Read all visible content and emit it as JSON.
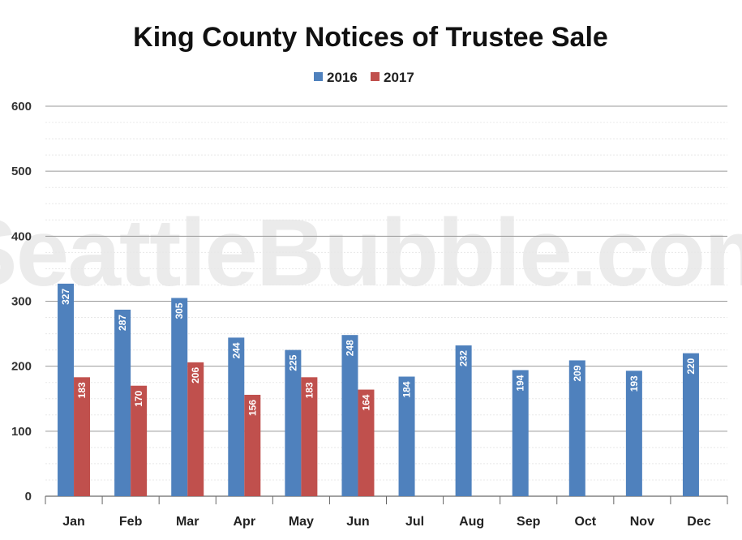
{
  "chart_data": {
    "type": "bar",
    "title": "King County Notices of Trustee Sale",
    "watermark": "SeattleBubble.com",
    "categories": [
      "Jan",
      "Feb",
      "Mar",
      "Apr",
      "May",
      "Jun",
      "Jul",
      "Aug",
      "Sep",
      "Oct",
      "Nov",
      "Dec"
    ],
    "series": [
      {
        "name": "2016",
        "color": "#4f81bd",
        "values": [
          327,
          287,
          305,
          244,
          225,
          248,
          184,
          232,
          194,
          209,
          193,
          220
        ]
      },
      {
        "name": "2017",
        "color": "#c0504d",
        "values": [
          183,
          170,
          206,
          156,
          183,
          164,
          null,
          null,
          null,
          null,
          null,
          null
        ]
      }
    ],
    "ylim": [
      0,
      600
    ],
    "yticks": [
      0,
      100,
      200,
      300,
      400,
      500,
      600
    ],
    "legend": "top-center",
    "grid": true,
    "data_labels": true
  }
}
